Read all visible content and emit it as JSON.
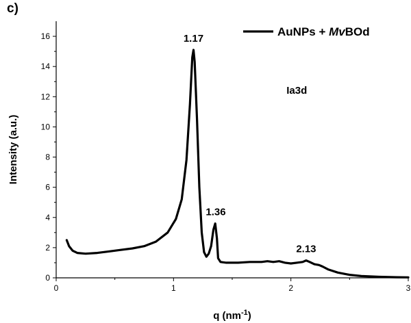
{
  "panel_label": "c)",
  "chart_data": {
    "type": "line",
    "title": "",
    "xlabel": "q (nm",
    "xlabel_sup": "-1",
    "xlabel_close": ")",
    "ylabel": "Intensity (a.u.)",
    "xlim": [
      0,
      3
    ],
    "ylim": [
      0,
      17
    ],
    "x_ticks": [
      0,
      1,
      2,
      3
    ],
    "x_tick_labels": [
      "0",
      "1",
      "2",
      "3"
    ],
    "y_ticks": [
      0,
      2,
      4,
      6,
      8,
      10,
      12,
      14,
      16
    ],
    "y_tick_labels": [
      "0",
      "2",
      "4",
      "6",
      "8",
      "10",
      "12",
      "14",
      "16"
    ],
    "grid": false,
    "legend": {
      "position": "top-right"
    },
    "series": [
      {
        "name": "AuNPs + MvBOd",
        "name_prefix": "AuNPs + ",
        "name_italic": "Mv",
        "name_suffix": "BOd",
        "color": "#000000",
        "points": [
          [
            0.09,
            2.5
          ],
          [
            0.11,
            2.1
          ],
          [
            0.14,
            1.8
          ],
          [
            0.18,
            1.65
          ],
          [
            0.25,
            1.6
          ],
          [
            0.35,
            1.65
          ],
          [
            0.45,
            1.75
          ],
          [
            0.55,
            1.85
          ],
          [
            0.65,
            1.95
          ],
          [
            0.75,
            2.1
          ],
          [
            0.85,
            2.4
          ],
          [
            0.95,
            3.0
          ],
          [
            1.02,
            3.9
          ],
          [
            1.07,
            5.2
          ],
          [
            1.11,
            7.8
          ],
          [
            1.14,
            11.5
          ],
          [
            1.16,
            14.6
          ],
          [
            1.17,
            15.1
          ],
          [
            1.18,
            14.3
          ],
          [
            1.2,
            10.5
          ],
          [
            1.22,
            6.0
          ],
          [
            1.24,
            3.0
          ],
          [
            1.26,
            1.7
          ],
          [
            1.28,
            1.4
          ],
          [
            1.3,
            1.6
          ],
          [
            1.32,
            2.1
          ],
          [
            1.34,
            3.2
          ],
          [
            1.355,
            3.6
          ],
          [
            1.37,
            2.6
          ],
          [
            1.38,
            1.3
          ],
          [
            1.4,
            1.05
          ],
          [
            1.45,
            1.0
          ],
          [
            1.55,
            1.0
          ],
          [
            1.65,
            1.05
          ],
          [
            1.75,
            1.05
          ],
          [
            1.8,
            1.1
          ],
          [
            1.85,
            1.05
          ],
          [
            1.9,
            1.1
          ],
          [
            1.95,
            1.0
          ],
          [
            2.0,
            0.95
          ],
          [
            2.05,
            1.0
          ],
          [
            2.1,
            1.05
          ],
          [
            2.13,
            1.15
          ],
          [
            2.16,
            1.05
          ],
          [
            2.2,
            0.9
          ],
          [
            2.24,
            0.85
          ],
          [
            2.27,
            0.75
          ],
          [
            2.32,
            0.55
          ],
          [
            2.4,
            0.35
          ],
          [
            2.5,
            0.2
          ],
          [
            2.6,
            0.12
          ],
          [
            2.75,
            0.07
          ],
          [
            2.9,
            0.04
          ],
          [
            3.0,
            0.03
          ]
        ]
      }
    ],
    "annotations": [
      {
        "text": "1.17",
        "x": 1.17,
        "y": 15.1
      },
      {
        "text": "1.36",
        "x": 1.36,
        "y": 3.6
      },
      {
        "text": "2.13",
        "x": 2.13,
        "y": 1.15
      }
    ],
    "text_labels": [
      {
        "text": "Ia3d",
        "x": 2.05,
        "y": 12.2
      }
    ]
  }
}
